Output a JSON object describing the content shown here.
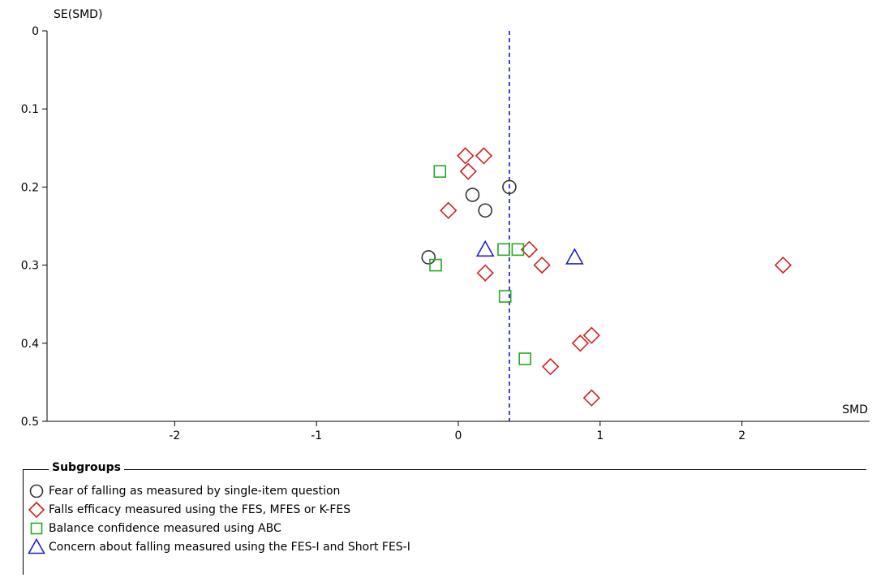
{
  "chart_data": {
    "type": "scatter",
    "title": "",
    "xlabel": "SMD",
    "ylabel": "SE(SMD)",
    "xlim": [
      -2.9,
      2.9
    ],
    "ylim": [
      0,
      0.5
    ],
    "y_reversed": true,
    "x_ticks": [
      "-2",
      "-1",
      "0",
      "1",
      "2"
    ],
    "y_ticks": [
      "0",
      "0.1",
      "0.2",
      "0.3",
      "0.4",
      "0.5"
    ],
    "reference_line": {
      "x": 0.36,
      "style": "dashed",
      "color": "#0000cc"
    },
    "legend": {
      "title": "Subgroups",
      "placement": "bottom"
    },
    "series": [
      {
        "name": "Fear of falling as measured by single-item question",
        "marker": "circle",
        "color": "#333333",
        "points": [
          [
            0.36,
            0.2
          ],
          [
            0.1,
            0.21
          ],
          [
            0.19,
            0.23
          ],
          [
            -0.21,
            0.29
          ]
        ]
      },
      {
        "name": "Falls efficacy measured using the FES, MFES or K-FES",
        "marker": "diamond",
        "color": "#cc2222",
        "points": [
          [
            0.05,
            0.16
          ],
          [
            0.18,
            0.16
          ],
          [
            0.07,
            0.18
          ],
          [
            -0.07,
            0.23
          ],
          [
            0.5,
            0.28
          ],
          [
            0.59,
            0.3
          ],
          [
            0.19,
            0.31
          ],
          [
            2.29,
            0.3
          ],
          [
            0.94,
            0.39
          ],
          [
            0.86,
            0.4
          ],
          [
            0.65,
            0.43
          ],
          [
            0.94,
            0.47
          ]
        ]
      },
      {
        "name": "Balance confidence measured using ABC",
        "marker": "square",
        "color": "#22aa22",
        "points": [
          [
            -0.13,
            0.18
          ],
          [
            0.32,
            0.28
          ],
          [
            0.42,
            0.28
          ],
          [
            -0.16,
            0.3
          ],
          [
            0.33,
            0.34
          ],
          [
            0.47,
            0.42
          ]
        ]
      },
      {
        "name": "Concern about falling measured using the FES-I and Short FES-I",
        "marker": "triangle",
        "color": "#2222cc",
        "points": [
          [
            0.19,
            0.28
          ],
          [
            0.82,
            0.29
          ]
        ]
      }
    ]
  }
}
